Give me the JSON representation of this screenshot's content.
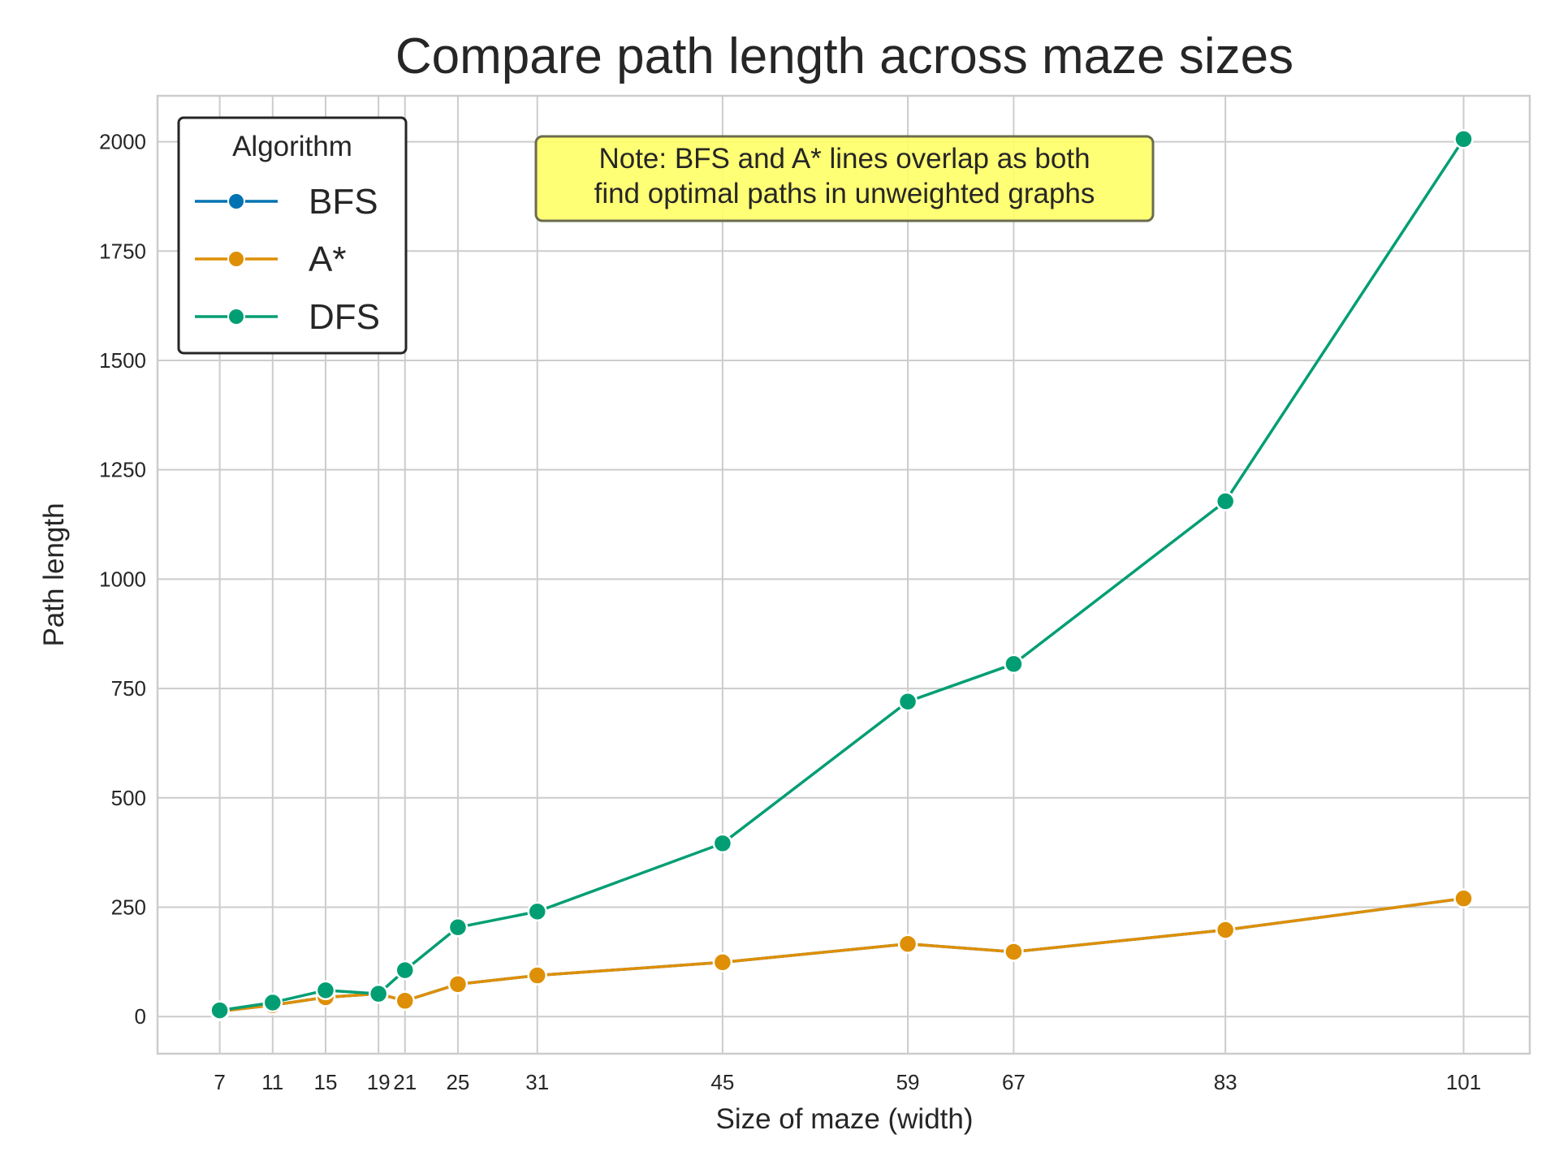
{
  "chart_data": {
    "type": "line",
    "title": "Compare path length across maze sizes",
    "xlabel": "Size of maze (width)",
    "ylabel": "Path length",
    "x": [
      7,
      11,
      15,
      19,
      21,
      25,
      31,
      45,
      59,
      67,
      83,
      101
    ],
    "x_ticks": [
      "7",
      "11",
      "15",
      "19",
      "21",
      "25",
      "31",
      "45",
      "59",
      "67",
      "83",
      "101"
    ],
    "y_ticks": [
      "0",
      "250",
      "500",
      "750",
      "1000",
      "1250",
      "1500",
      "1750",
      "2000"
    ],
    "xlim": [
      2.3,
      106
    ],
    "ylim": [
      -85,
      2105
    ],
    "grid": true,
    "legend": {
      "title": "Algorithm",
      "position": "top-left"
    },
    "series": [
      {
        "name": "BFS",
        "color": "#0173b2",
        "values": [
          12,
          26,
          44,
          52,
          36,
          74,
          94,
          124,
          166,
          148,
          198,
          270
        ]
      },
      {
        "name": "A*",
        "color": "#de8f05",
        "values": [
          12,
          26,
          44,
          52,
          36,
          74,
          94,
          124,
          166,
          148,
          198,
          270
        ]
      },
      {
        "name": "DFS",
        "color": "#029e73",
        "values": [
          14,
          32,
          60,
          52,
          106,
          204,
          240,
          396,
          720,
          806,
          1178,
          2006
        ]
      }
    ],
    "annotation": {
      "lines": [
        "Note: BFS and A* lines overlap as both",
        "find optimal paths in unweighted graphs"
      ],
      "background": "#ffff66"
    }
  }
}
